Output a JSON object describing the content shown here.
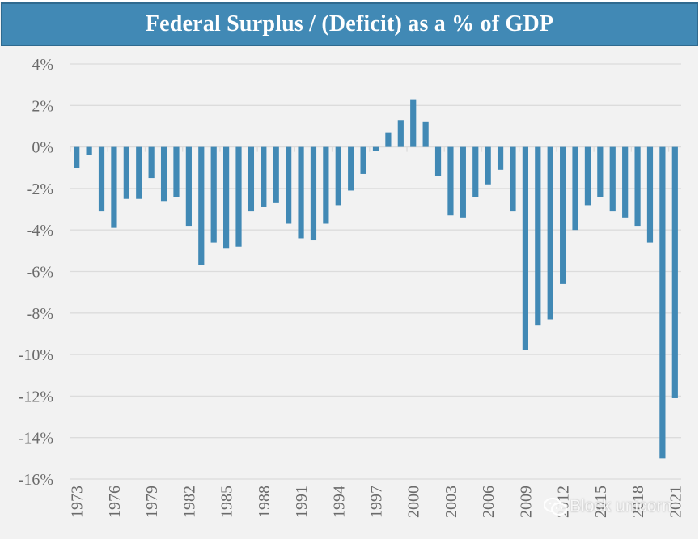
{
  "colors": {
    "bar": "#4189b5",
    "title_bg": "#4189b5",
    "title_border": "#2f6a8f",
    "plot_bg": "#f2f2f2",
    "gridline": "#dcdcdc",
    "tick_text": "#6b6b6b"
  },
  "watermark": {
    "icon": "wechat-icon",
    "text": "Block unicorn"
  },
  "chart_data": {
    "type": "bar",
    "title": "Federal Surplus / (Deficit) as a % of GDP",
    "xlabel": "",
    "ylabel": "",
    "ylim": [
      -16,
      4
    ],
    "yticks": [
      4,
      2,
      0,
      -2,
      -4,
      -6,
      -8,
      -10,
      -12,
      -14,
      -16
    ],
    "ytick_labels": [
      "4%",
      "2%",
      "0%",
      "-2%",
      "-4%",
      "-6%",
      "-8%",
      "-10%",
      "-12%",
      "-14%",
      "-16%"
    ],
    "grid": true,
    "legend": "none",
    "xtick_labels": [
      "1973",
      "1976",
      "1979",
      "1982",
      "1985",
      "1988",
      "1991",
      "1994",
      "1997",
      "2000",
      "2003",
      "2006",
      "2009",
      "2012",
      "2015",
      "2018",
      "2021"
    ],
    "categories": [
      "1973",
      "1974",
      "1975",
      "1976",
      "1977",
      "1978",
      "1979",
      "1980",
      "1981",
      "1982",
      "1983",
      "1984",
      "1985",
      "1986",
      "1987",
      "1988",
      "1989",
      "1990",
      "1991",
      "1992",
      "1993",
      "1994",
      "1995",
      "1996",
      "1997",
      "1998",
      "1999",
      "2000",
      "2001",
      "2002",
      "2003",
      "2004",
      "2005",
      "2006",
      "2007",
      "2008",
      "2009",
      "2010",
      "2011",
      "2012",
      "2013",
      "2014",
      "2015",
      "2016",
      "2017",
      "2018",
      "2019",
      "2020",
      "2021"
    ],
    "series": [
      {
        "name": "Federal Surplus / (Deficit) % of GDP",
        "values": [
          -1.0,
          -0.4,
          -3.1,
          -3.9,
          -2.5,
          -2.5,
          -1.5,
          -2.6,
          -2.4,
          -3.8,
          -5.7,
          -4.6,
          -4.9,
          -4.8,
          -3.1,
          -2.9,
          -2.7,
          -3.7,
          -4.4,
          -4.5,
          -3.7,
          -2.8,
          -2.1,
          -1.3,
          -0.2,
          0.7,
          1.3,
          2.3,
          1.2,
          -1.4,
          -3.3,
          -3.4,
          -2.4,
          -1.8,
          -1.1,
          -3.1,
          -9.8,
          -8.6,
          -8.3,
          -6.6,
          -4.0,
          -2.8,
          -2.4,
          -3.1,
          -3.4,
          -3.8,
          -4.6,
          -15.0,
          -12.1
        ]
      }
    ]
  }
}
